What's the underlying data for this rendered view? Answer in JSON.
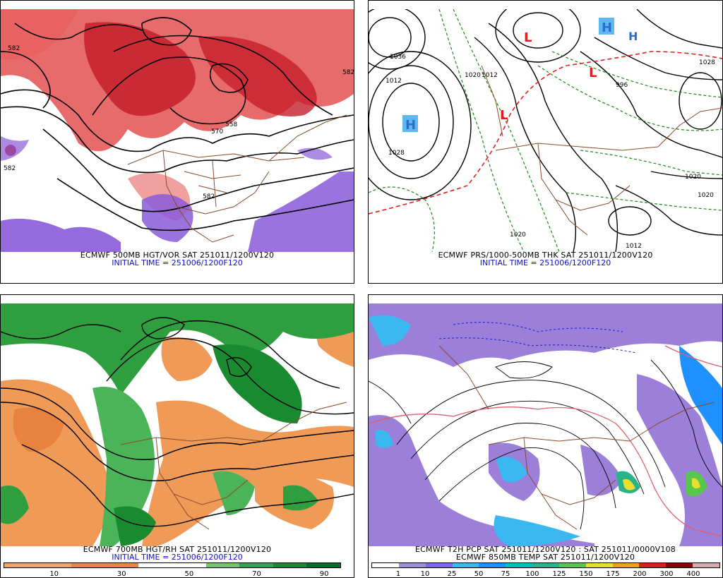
{
  "panels": [
    {
      "caption": "ECMWF 500MB HGT/VOR SAT 251011/1200V120",
      "init": "INITIAL TIME = 251006/1200F120",
      "labels": [
        "582",
        "582",
        "570",
        "558",
        "582",
        "582"
      ]
    },
    {
      "caption": "ECMWF PRS/1000-500MB THK SAT 251011/1200V120",
      "init": "INITIAL TIME = 251006/1200F120",
      "labels": [
        "1036",
        "1012",
        "1020",
        "1012",
        "1028",
        "996",
        "1028",
        "1020",
        "1020",
        "1012",
        "1020"
      ],
      "highs": [
        "H",
        "H",
        "H"
      ],
      "lows": [
        "L",
        "L",
        "L"
      ]
    },
    {
      "caption": "ECMWF 700MB HGT/RH SAT 251011/1200V120",
      "init": "INITIAL TIME = 251006/1200F120",
      "colorbar": {
        "ticks": [
          "10",
          "30",
          "50",
          "70",
          "90"
        ],
        "colors": [
          "#f4a462",
          "#f4a462",
          "#e8864a",
          "#e8864a",
          "#ffffff",
          "#ffffff",
          "#74c476",
          "#31a354",
          "#1a8a30",
          "#006d2c"
        ]
      }
    },
    {
      "caption": "ECMWF T2H PCP SAT 251011/1200V120 : SAT 251011/0000V108",
      "caption2": "ECMWF 850MB TEMP SAT 251011/1200V120",
      "colorbar": {
        "ticks": [
          "1",
          "10",
          "25",
          "50",
          "75",
          "100",
          "125",
          "150",
          "175",
          "200",
          "300",
          "400"
        ],
        "colors": [
          "#ffffff",
          "#9b8fd8",
          "#7b68ee",
          "#3cb8f0",
          "#1e90ff",
          "#00c0c0",
          "#2ab38a",
          "#57c84d",
          "#e8e030",
          "#f0a020",
          "#d02020",
          "#8b0000",
          "#d8a8b0"
        ]
      }
    }
  ]
}
